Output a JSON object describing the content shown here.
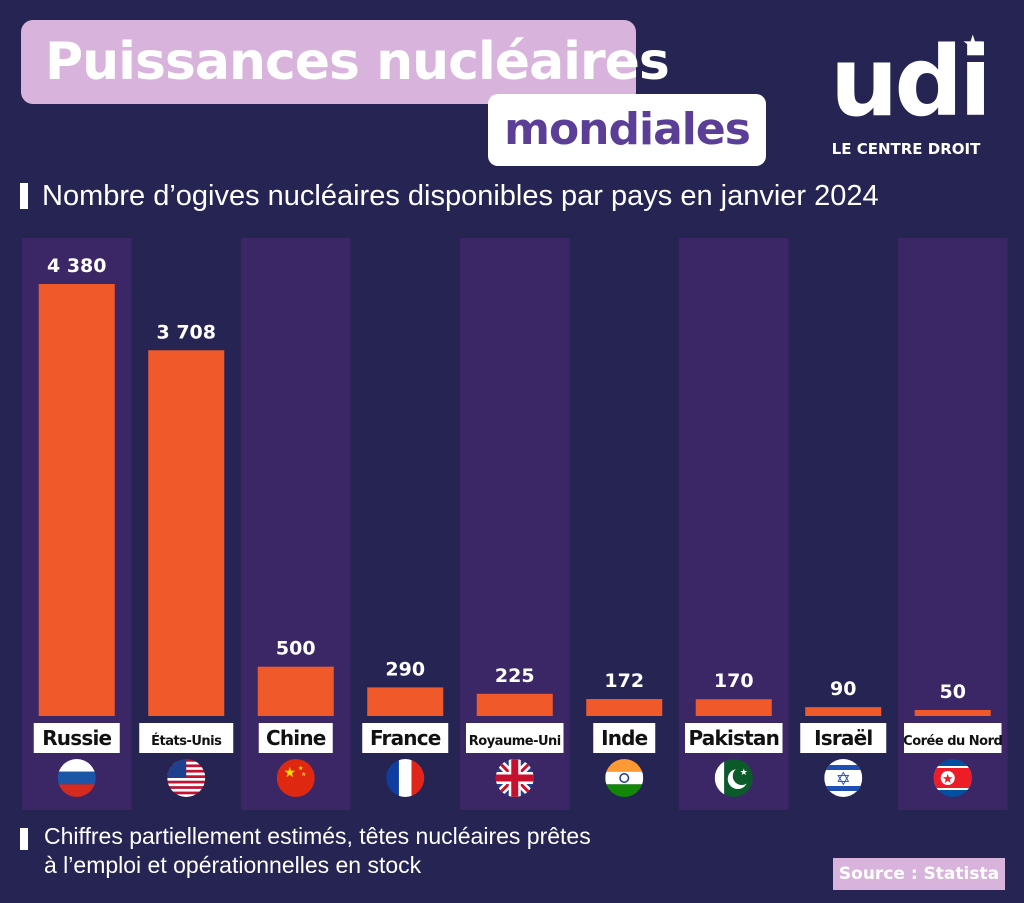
{
  "header": {
    "title_line1": "Puissances nucléaires",
    "title_line2": "mondiales",
    "logo_text": "udi",
    "logo_tagline": "LE CENTRE DROIT"
  },
  "footer": {
    "note_line1": "Chiffres partiellement estimés, têtes nucléaires prêtes",
    "note_line2": "à l’emploi et opérationnelles en stock",
    "source": "Source : Statista"
  },
  "colors": {
    "background": "#262452",
    "column_bg": "#3c2766",
    "bar": "#f05a2a",
    "title_pill": "#d8b4dc",
    "title2_text": "#5b3f97"
  },
  "chart_data": {
    "type": "bar",
    "title": "Nombre d’ogives nucléaires disponibles par pays en janvier 2024",
    "categories": [
      "Russie",
      "États-Unis",
      "Chine",
      "France",
      "Royaume-Uni",
      "Inde",
      "Pakistan",
      "Israël",
      "Corée du Nord"
    ],
    "values": [
      4380,
      3708,
      500,
      290,
      225,
      172,
      170,
      90,
      50
    ],
    "value_labels": [
      "4 380",
      "3 708",
      "500",
      "290",
      "225",
      "172",
      "170",
      "90",
      "50"
    ],
    "flag_icons": [
      "flag-russia-icon",
      "flag-usa-icon",
      "flag-china-icon",
      "flag-france-icon",
      "flag-uk-icon",
      "flag-india-icon",
      "flag-pakistan-icon",
      "flag-israel-icon",
      "flag-north-korea-icon"
    ],
    "ylim": [
      0,
      4600
    ],
    "grid": false,
    "legend": "none"
  }
}
